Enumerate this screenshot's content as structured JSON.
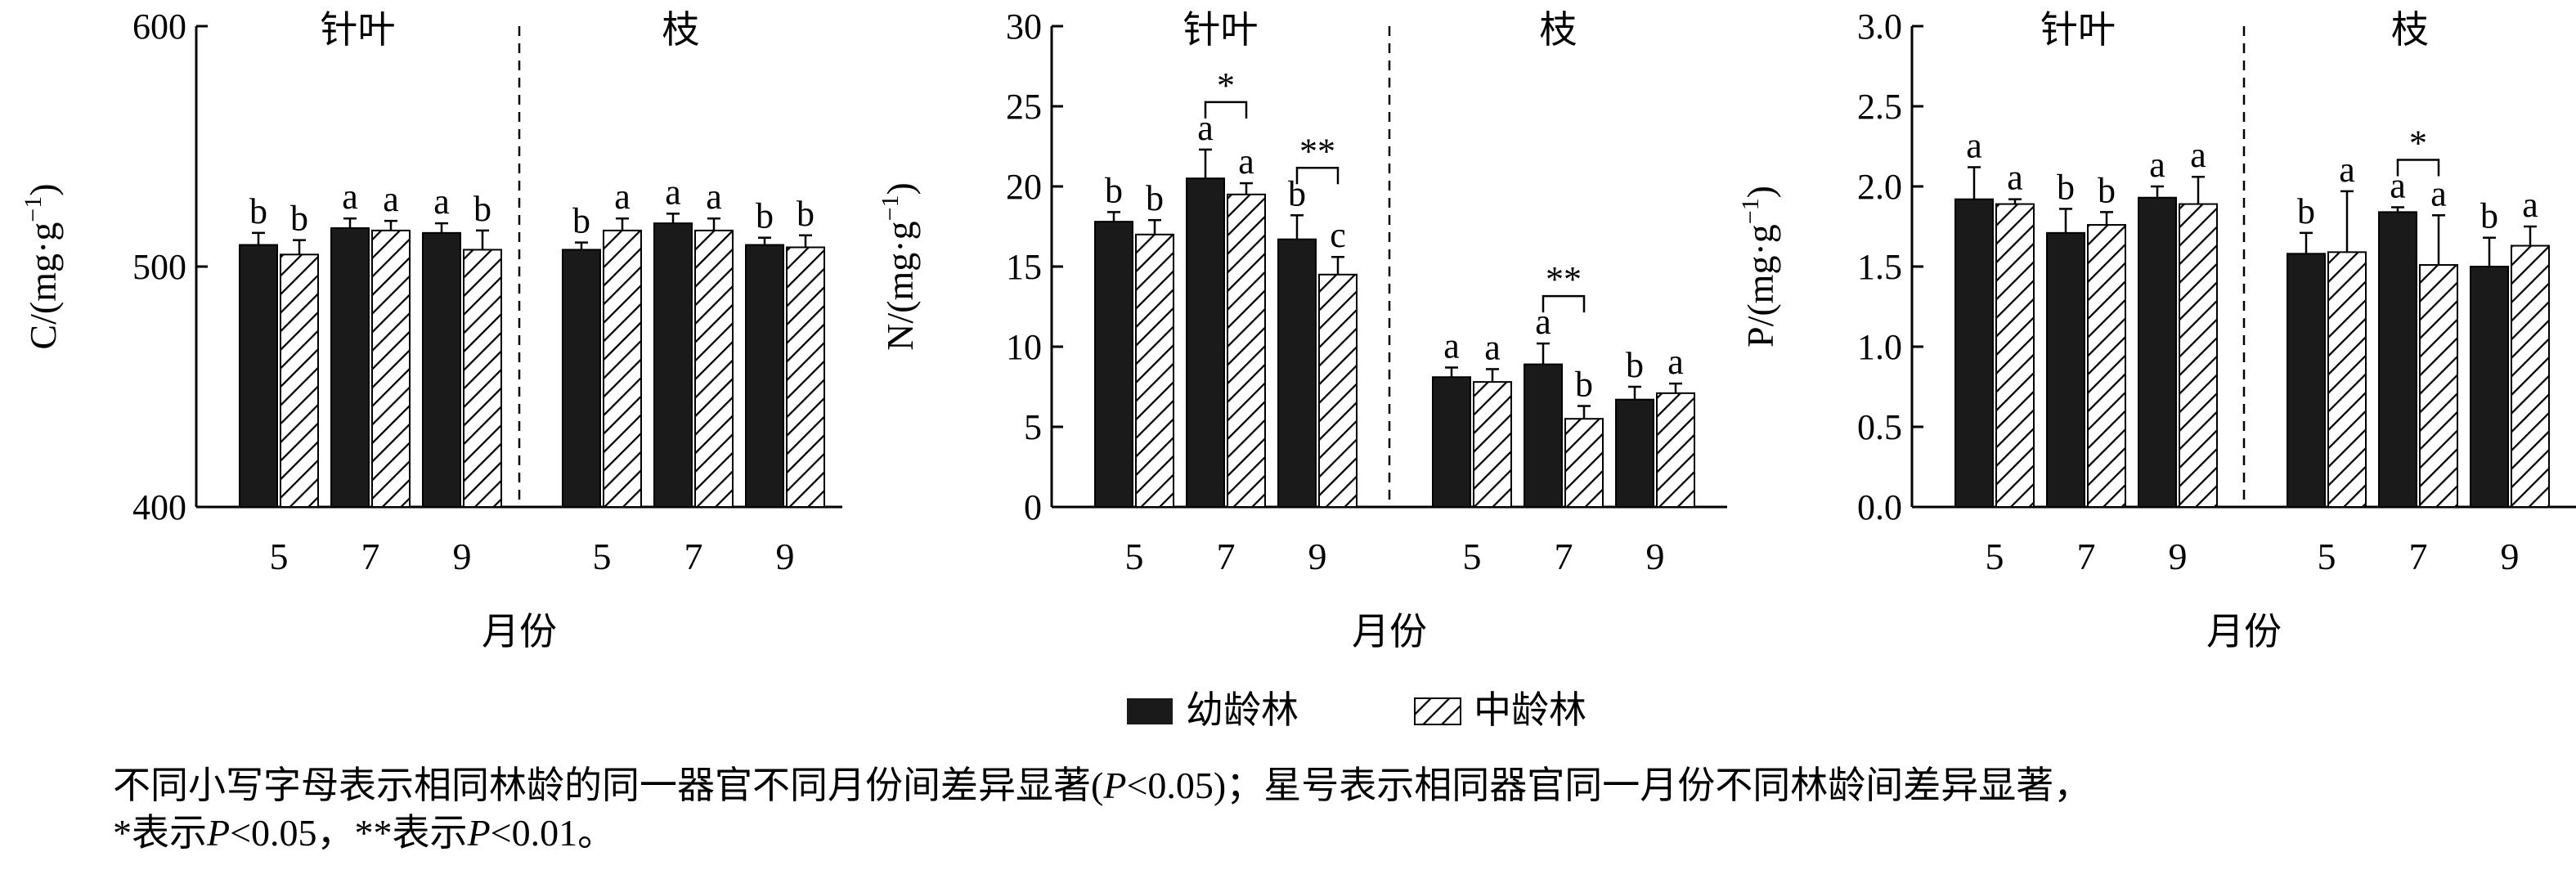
{
  "chart_data": [
    {
      "type": "bar",
      "ylabel": "C/(mg·g⁻¹)",
      "ylabel_base": "C/(mg",
      "ylabel_unit": "g",
      "ylabel_exp": "−1",
      "ylim": [
        400,
        600
      ],
      "yticks": [
        "400",
        "500",
        "600"
      ],
      "ytick_values": [
        400,
        500,
        600
      ],
      "xlabel": "月份",
      "groups": [
        {
          "label": "针叶",
          "categories": [
            "5",
            "7",
            "9"
          ],
          "series": [
            {
              "name": "幼龄林",
              "values": [
                509,
                516,
                514
              ],
              "errors": [
                5,
                4,
                4
              ],
              "letters": [
                "b",
                "a",
                "a"
              ]
            },
            {
              "name": "中龄林",
              "values": [
                505,
                515,
                507
              ],
              "errors": [
                6,
                4,
                8
              ],
              "letters": [
                "b",
                "a",
                "b"
              ]
            }
          ],
          "significance": []
        },
        {
          "label": "枝",
          "categories": [
            "5",
            "7",
            "9"
          ],
          "series": [
            {
              "name": "幼龄林",
              "values": [
                507,
                518,
                509
              ],
              "errors": [
                3,
                4,
                3
              ],
              "letters": [
                "b",
                "a",
                "b"
              ]
            },
            {
              "name": "中龄林",
              "values": [
                515,
                515,
                508
              ],
              "errors": [
                5,
                5,
                5
              ],
              "letters": [
                "a",
                "a",
                "b"
              ]
            }
          ],
          "significance": []
        }
      ]
    },
    {
      "type": "bar",
      "ylabel": "N/(mg·g⁻¹)",
      "ylabel_base": "N/(mg",
      "ylabel_unit": "g",
      "ylabel_exp": "−1",
      "ylim": [
        0,
        30
      ],
      "yticks": [
        "0",
        "5",
        "10",
        "15",
        "20",
        "25",
        "30"
      ],
      "ytick_values": [
        0,
        5,
        10,
        15,
        20,
        25,
        30
      ],
      "xlabel": "月份",
      "groups": [
        {
          "label": "针叶",
          "categories": [
            "5",
            "7",
            "9"
          ],
          "series": [
            {
              "name": "幼龄林",
              "values": [
                17.8,
                20.5,
                16.7
              ],
              "errors": [
                0.6,
                1.8,
                1.5
              ],
              "letters": [
                "b",
                "a",
                "b"
              ]
            },
            {
              "name": "中龄林",
              "values": [
                17.0,
                19.5,
                14.5
              ],
              "errors": [
                0.9,
                0.7,
                1.1
              ],
              "letters": [
                "b",
                "a",
                "c"
              ]
            }
          ],
          "significance": [
            {
              "category": "7",
              "mark": "*"
            },
            {
              "category": "9",
              "mark": "**"
            }
          ]
        },
        {
          "label": "枝",
          "categories": [
            "5",
            "7",
            "9"
          ],
          "series": [
            {
              "name": "幼龄林",
              "values": [
                8.1,
                8.9,
                6.7
              ],
              "errors": [
                0.6,
                1.3,
                0.8
              ],
              "letters": [
                "a",
                "a",
                "b"
              ]
            },
            {
              "name": "中龄林",
              "values": [
                7.8,
                5.5,
                7.1
              ],
              "errors": [
                0.8,
                0.8,
                0.6
              ],
              "letters": [
                "a",
                "b",
                "a"
              ]
            }
          ],
          "significance": [
            {
              "category": "7",
              "mark": "**"
            }
          ]
        }
      ]
    },
    {
      "type": "bar",
      "ylabel": "P/(mg·g⁻¹)",
      "ylabel_base": "P/(mg",
      "ylabel_unit": "g",
      "ylabel_exp": "−1",
      "ylim": [
        0,
        3
      ],
      "yticks": [
        "0.0",
        "0.5",
        "1.0",
        "1.5",
        "2.0",
        "2.5",
        "3.0"
      ],
      "ytick_values": [
        0,
        0.5,
        1.0,
        1.5,
        2.0,
        2.5,
        3.0
      ],
      "xlabel": "月份",
      "groups": [
        {
          "label": "针叶",
          "categories": [
            "5",
            "7",
            "9"
          ],
          "series": [
            {
              "name": "幼龄林",
              "values": [
                1.92,
                1.71,
                1.93
              ],
              "errors": [
                0.2,
                0.15,
                0.07
              ],
              "letters": [
                "a",
                "b",
                "a"
              ]
            },
            {
              "name": "中龄林",
              "values": [
                1.89,
                1.76,
                1.89
              ],
              "errors": [
                0.03,
                0.08,
                0.17
              ],
              "letters": [
                "a",
                "b",
                "a"
              ]
            }
          ],
          "significance": []
        },
        {
          "label": "枝",
          "categories": [
            "5",
            "7",
            "9"
          ],
          "series": [
            {
              "name": "幼龄林",
              "values": [
                1.58,
                1.84,
                1.5
              ],
              "errors": [
                0.13,
                0.03,
                0.18
              ],
              "letters": [
                "b",
                "a",
                "b"
              ]
            },
            {
              "name": "中龄林",
              "values": [
                1.59,
                1.51,
                1.63
              ],
              "errors": [
                0.38,
                0.31,
                0.12
              ],
              "letters": [
                "a",
                "a",
                "a"
              ]
            }
          ],
          "significance": [
            {
              "category": "7",
              "mark": "*"
            }
          ]
        }
      ]
    }
  ],
  "legend": [
    {
      "name": "幼龄林",
      "pattern": "solid"
    },
    {
      "name": "中龄林",
      "pattern": "hatched"
    }
  ],
  "caption": {
    "line1_a": "不同小写字母表示相同林龄的同一器官不同月份间差异显著(",
    "line1_p": "P",
    "line1_b": "<0.05)；星号表示相同器官同一月份不同林龄间差异显著，",
    "line2_a": "*表示",
    "line2_p1": "P",
    "line2_b": "<0.05，**表示",
    "line2_p2": "P",
    "line2_c": "<0.01。"
  },
  "colors": {
    "dark_bar": "#1a1a1a",
    "hatch": "#000000",
    "axis": "#000000"
  }
}
